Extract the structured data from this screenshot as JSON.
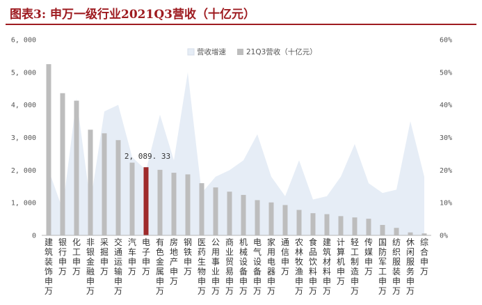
{
  "title": "图表3:  申万一级行业2021Q3营收（十亿元）",
  "chart_data": {
    "type": "bar",
    "categories": [
      "建筑装饰(申万)",
      "银行(申万)",
      "化工(申万)",
      "非银金融(申万)",
      "采掘(申万)",
      "交通运输(申万)",
      "汽车(申万)",
      "电子(申万)",
      "有色金属(申万)",
      "房地产(申万)",
      "钢铁(申万)",
      "医药生物(申万)",
      "公用事业(申万)",
      "商业贸易(申万)",
      "机械设备(申万)",
      "电气设备(申万)",
      "家用电器(申万)",
      "通信(申万)",
      "农林牧渔(申万)",
      "食品饮料(申万)",
      "建筑材料(申万)",
      "计算机(申万)",
      "轻工制造(申万)",
      "传媒(申万)",
      "国防军工(申万)",
      "纺织服装(申万)",
      "休闲服务(申万)",
      "综合(申万)"
    ],
    "series": [
      {
        "name": "21Q3营收（十亿元）",
        "type": "bar",
        "axis": "left",
        "values": [
          5250,
          4360,
          4130,
          3240,
          3130,
          2920,
          2230,
          2089.33,
          2010,
          1920,
          1870,
          1600,
          1470,
          1340,
          1240,
          1080,
          1010,
          930,
          780,
          680,
          650,
          590,
          550,
          510,
          320,
          230,
          90,
          60
        ],
        "color": "#bdbdbd",
        "highlight_index": 7,
        "highlight_color": "#9e2a2b"
      },
      {
        "name": "营收增速",
        "type": "area",
        "axis": "right",
        "values": [
          20,
          8,
          42,
          10,
          38,
          40,
          24,
          20,
          37,
          23,
          50,
          13,
          18,
          20,
          23,
          31,
          18,
          12,
          23,
          11,
          12,
          18,
          28,
          16,
          13,
          14,
          35,
          18
        ],
        "color": "#e6edf6"
      }
    ],
    "data_labels": [
      {
        "index": 7,
        "text": "2, 089. 33"
      }
    ],
    "ylim_left": [
      0,
      6000
    ],
    "yticks_left": [
      "0",
      "1, 000",
      "2, 000",
      "3, 000",
      "4, 000",
      "5, 000",
      "6, 000"
    ],
    "ylim_right": [
      0,
      60
    ],
    "yticks_right": [
      "0%",
      "10%",
      "20%",
      "30%",
      "40%",
      "50%",
      "60%"
    ],
    "legend": {
      "position": "top-center",
      "entries": [
        "营收增速",
        "21Q3营收（十亿元）"
      ]
    },
    "grid": false
  }
}
